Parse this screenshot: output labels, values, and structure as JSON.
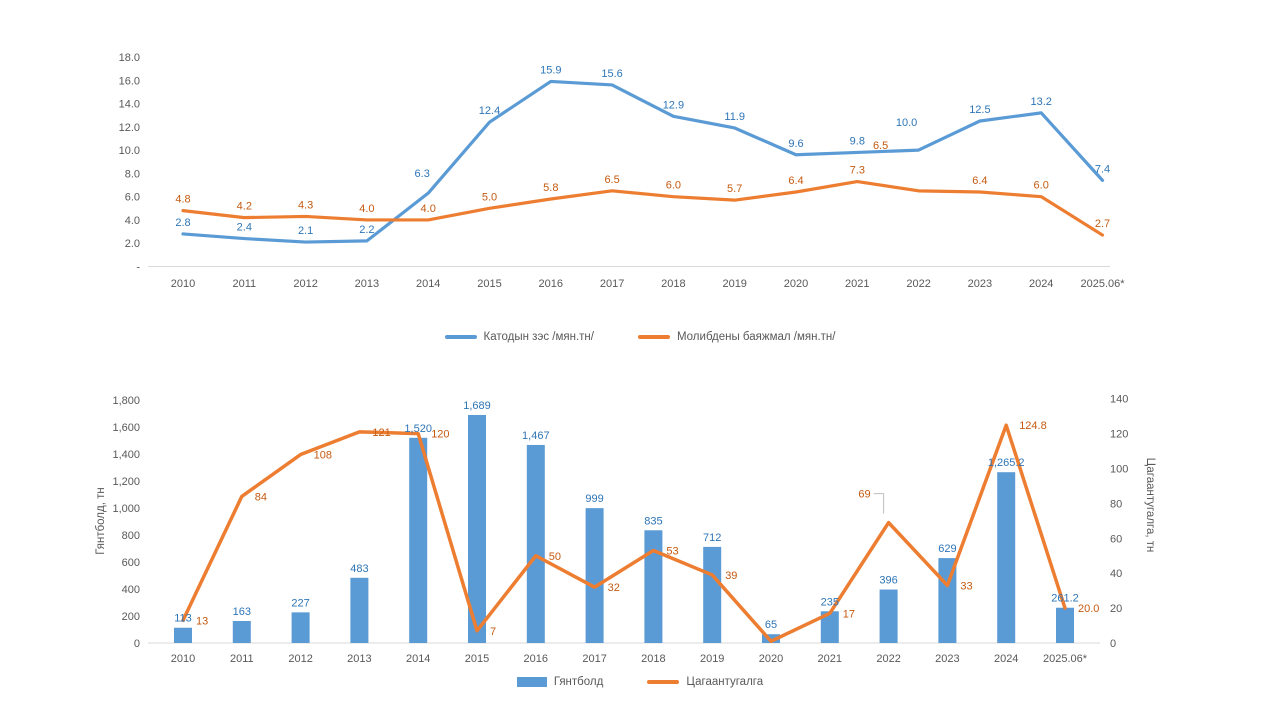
{
  "page": {
    "background": "#ffffff",
    "axis_text_color": "#595959",
    "axis_line_color": "#d9d9d9",
    "leader_line_color": "#bfbfbf"
  },
  "chart_data": [
    {
      "id": "top-chart",
      "type": "line",
      "title": "",
      "categories": [
        "2010",
        "2011",
        "2012",
        "2013",
        "2014",
        "2015",
        "2016",
        "2017",
        "2018",
        "2019",
        "2020",
        "2021",
        "2022",
        "2023",
        "2024",
        "2025.06*"
      ],
      "y_axis": {
        "min": 0,
        "max": 18,
        "ticks": [
          {
            "label": "18.0",
            "v": 18
          },
          {
            "label": "16.0",
            "v": 16
          },
          {
            "label": "14.0",
            "v": 14
          },
          {
            "label": "12.0",
            "v": 12
          },
          {
            "label": "10.0",
            "v": 10
          },
          {
            "label": "8.0",
            "v": 8
          },
          {
            "label": "6.0",
            "v": 6
          },
          {
            "label": "4.0",
            "v": 4
          },
          {
            "label": "2.0",
            "v": 2
          },
          {
            "label": "-",
            "v": 0
          }
        ]
      },
      "grid": false,
      "legend_position": "bottom",
      "series": [
        {
          "name": "Катодын зэс /мян.тн/",
          "swatch": "line",
          "color": "#5b9bd5",
          "label_color": "#2e75b6",
          "values": [
            2.8,
            2.4,
            2.1,
            2.2,
            6.3,
            12.4,
            15.9,
            15.6,
            12.9,
            11.9,
            9.6,
            9.8,
            10.0,
            12.5,
            13.2,
            7.4
          ],
          "labels": [
            "2.8",
            "2.4",
            "2.1",
            "2.2",
            "6.3",
            "12.4",
            "15.9",
            "15.6",
            "12.9",
            "11.9",
            "9.6",
            "9.8",
            "10.0",
            "12.5",
            "13.2",
            "7.4"
          ]
        },
        {
          "name": "Молибдены баяжмал /мян.тн/",
          "swatch": "line",
          "color": "#ed7d31",
          "label_color": "#c55a11",
          "values": [
            4.8,
            4.2,
            4.3,
            4.0,
            4.0,
            5.0,
            5.8,
            6.5,
            6.0,
            5.7,
            6.4,
            7.3,
            6.5,
            6.4,
            6.0,
            2.7
          ],
          "labels": [
            "4.8",
            "4.2",
            "4.3",
            "4.0",
            "4.0",
            "5.0",
            "5.8",
            "6.5",
            "6.0",
            "5.7",
            "6.4",
            "7.3",
            "6.5",
            "6.4",
            "6.0",
            "2.7"
          ]
        }
      ]
    },
    {
      "id": "bottom-chart",
      "type": "bar+line",
      "title": "",
      "categories": [
        "2010",
        "2011",
        "2012",
        "2013",
        "2014",
        "2015",
        "2016",
        "2017",
        "2018",
        "2019",
        "2020",
        "2021",
        "2022",
        "2023",
        "2024",
        "2025.06*"
      ],
      "left_axis": {
        "title": "Гянтболд, тн",
        "min": 0,
        "max": 1800,
        "ticks": [
          {
            "label": "1,800",
            "v": 1800
          },
          {
            "label": "1,600",
            "v": 1600
          },
          {
            "label": "1,400",
            "v": 1400
          },
          {
            "label": "1,200",
            "v": 1200
          },
          {
            "label": "1,000",
            "v": 1000
          },
          {
            "label": "800",
            "v": 800
          },
          {
            "label": "600",
            "v": 600
          },
          {
            "label": "400",
            "v": 400
          },
          {
            "label": "200",
            "v": 200
          },
          {
            "label": "0",
            "v": 0
          }
        ]
      },
      "right_axis": {
        "title": "Цагаантугалга, тн",
        "min": 0,
        "max": 140,
        "ticks": [
          {
            "label": "140",
            "v": 140
          },
          {
            "label": "120",
            "v": 120
          },
          {
            "label": "100",
            "v": 100
          },
          {
            "label": "80",
            "v": 80
          },
          {
            "label": "60",
            "v": 60
          },
          {
            "label": "40",
            "v": 40
          },
          {
            "label": "20",
            "v": 20
          },
          {
            "label": "0",
            "v": 0
          }
        ]
      },
      "grid": false,
      "legend_position": "bottom",
      "bar_series": {
        "name": "Гянтболд",
        "swatch": "rect",
        "color": "#5b9bd5",
        "label_color": "#2e75b6",
        "values": [
          113,
          163,
          227,
          483,
          1520,
          1689,
          1467,
          999,
          835,
          712,
          65,
          235,
          396,
          629,
          1265.2,
          261.2
        ],
        "labels": [
          "113",
          "163",
          "227",
          "483",
          "1,520",
          "1,689",
          "1,467",
          "999",
          "835",
          "712",
          "65",
          "235",
          "396",
          "629",
          "1,265.2",
          "261.2"
        ]
      },
      "line_series": {
        "name": "Цагаантугалга",
        "swatch": "line",
        "color": "#ed7d31",
        "label_color": "#c55a11",
        "values": [
          13,
          84,
          108,
          121,
          120,
          7,
          50,
          32,
          53,
          39,
          1,
          17,
          69,
          33,
          124.8,
          20
        ],
        "labels": [
          "13",
          "84",
          "108",
          "121",
          "120",
          "7",
          "50",
          "32",
          "53",
          "39",
          "",
          "17",
          "69",
          "33",
          "124.8",
          "20.0"
        ]
      }
    }
  ]
}
